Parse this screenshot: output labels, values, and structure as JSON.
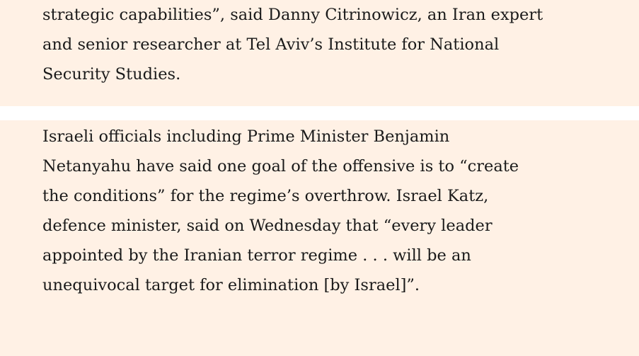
{
  "paragraphs": [
    {
      "lines": [
        "strategic capabilities”, said Danny Citrinowicz, an Iran expert",
        "and senior researcher at Tel Aviv’s Institute for National",
        "Security Studies."
      ]
    },
    {
      "lines": [
        "Israeli officials including Prime Minister Benjamin",
        "Netanyahu have said one goal of the offensive is to “create",
        "the conditions” for the regime’s overthrow. Israel Katz,",
        "defence minister, said on Wednesday that “every leader",
        "appointed by the Iranian terror regime . . . will be an",
        "unequivocal target for elimination [by Israel]”."
      ]
    }
  ]
}
